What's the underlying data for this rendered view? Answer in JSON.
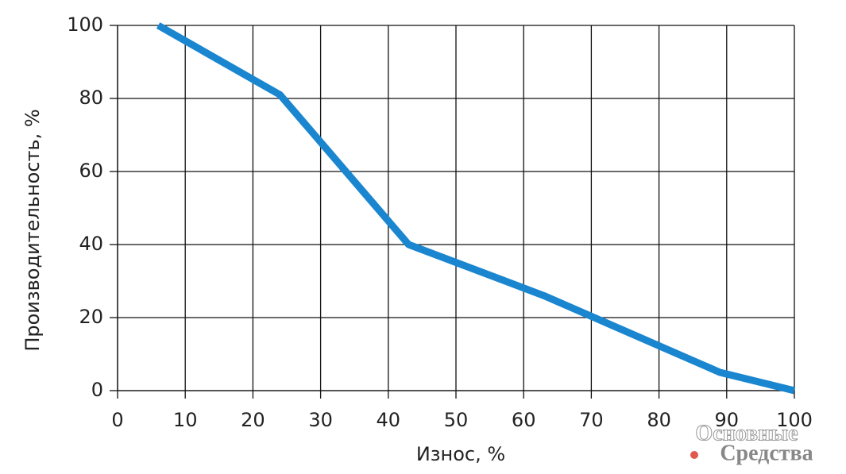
{
  "chart_data": {
    "type": "line",
    "xlabel": "Износ, %",
    "ylabel": "Производительность, %",
    "x": [
      6,
      24,
      43,
      63,
      89,
      100
    ],
    "series": [
      {
        "color": "#1a86cf",
        "values": [
          100,
          81,
          40,
          26,
          5,
          0
        ]
      }
    ],
    "xlim": [
      0,
      100
    ],
    "xticks": [
      0,
      10,
      20,
      30,
      40,
      50,
      60,
      70,
      80,
      90,
      100
    ],
    "ylim": [
      0,
      100
    ],
    "yticks": [
      0,
      20,
      40,
      60,
      80,
      100
    ],
    "grid": true,
    "watermark": [
      "Основные",
      "Средства"
    ]
  }
}
